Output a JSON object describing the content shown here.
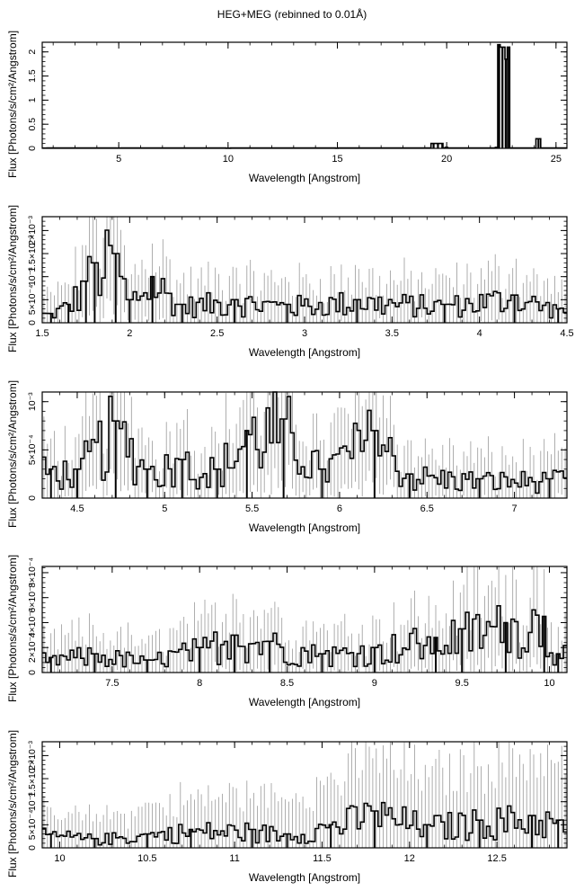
{
  "figure_title": "HEG+MEG (rebinned to 0.01Å)",
  "colors": {
    "data": "#000000",
    "error_bar": "#9a9a9a",
    "axes": "#000000",
    "background": "#ffffff"
  },
  "chart_data": [
    {
      "type": "line",
      "title": "HEG+MEG (rebinned to 0.01Å)",
      "xlabel": "Wavelength [Angstrom]",
      "ylabel": "Flux [Photons/s/cm²/Angstrom]",
      "xlim": [
        1.5,
        25.5
      ],
      "ylim": [
        0,
        2.2
      ],
      "xticks": [
        5,
        10,
        15,
        20,
        25
      ],
      "xtick_labels": [
        "5",
        "10",
        "15",
        "20",
        "25"
      ],
      "yticks": [
        0,
        0.5,
        1,
        1.5,
        2
      ],
      "ytick_labels": [
        "0",
        "0.5",
        "1",
        "1.5",
        "2"
      ],
      "y_exponent_label": "",
      "grid": false,
      "series": [
        {
          "x": [
            1.6,
            5,
            10,
            15,
            19.4,
            19.6,
            19.8,
            20.0,
            22.3,
            22.4,
            22.55,
            22.7,
            22.8,
            24.2,
            25.3
          ],
          "y": [
            0.005,
            0.005,
            0.004,
            0.003,
            0.1,
            0.1,
            0.1,
            0.02,
            0.02,
            2.15,
            2.1,
            1.85,
            2.1,
            0.2,
            0.01
          ]
        }
      ]
    },
    {
      "type": "line",
      "xlabel": "Wavelength [Angstrom]",
      "ylabel": "Flux [Photons/s/cm²/Angstrom]",
      "xlim": [
        1.5,
        4.5
      ],
      "ylim": [
        0,
        0.0023
      ],
      "xticks": [
        1.5,
        2,
        2.5,
        3,
        3.5,
        4,
        4.5
      ],
      "xtick_labels": [
        "1.5",
        "2",
        "2.5",
        "3",
        "3.5",
        "4",
        "4.5"
      ],
      "yticks": [
        0,
        0.0005,
        0.001,
        0.0015,
        0.002
      ],
      "ytick_labels": [
        "0",
        "5×10⁻⁴",
        "10⁻³",
        "1.5×10⁻³",
        "2×10⁻³"
      ],
      "y_exponent_label": "",
      "grid": false,
      "series": [
        {
          "x": [
            1.55,
            1.65,
            1.75,
            1.8,
            1.92,
            2.0,
            2.13,
            2.3,
            2.6,
            2.9,
            3.3,
            3.8,
            4.2,
            4.45
          ],
          "y": [
            0.0002,
            0.0004,
            0.0009,
            0.0013,
            0.0015,
            0.0005,
            0.001,
            0.0004,
            0.0005,
            0.0004,
            0.0005,
            0.0004,
            0.0006,
            0.0003
          ]
        }
      ]
    },
    {
      "type": "line",
      "xlabel": "Wavelength [Angstrom]",
      "ylabel": "Flux [Photons/s/cm²/Angstrom]",
      "xlim": [
        4.3,
        7.3
      ],
      "ylim": [
        0,
        0.0011
      ],
      "xticks": [
        4.5,
        5,
        5.5,
        6,
        6.5,
        7
      ],
      "xtick_labels": [
        "4.5",
        "5",
        "5.5",
        "6",
        "6.5",
        "7"
      ],
      "yticks": [
        0,
        0.0005,
        0.001
      ],
      "ytick_labels": [
        "0",
        "5×10⁻⁴",
        "10⁻³"
      ],
      "y_exponent_label": "",
      "grid": false,
      "series": [
        {
          "x": [
            4.35,
            4.5,
            4.72,
            4.9,
            5.1,
            5.3,
            5.47,
            5.68,
            5.9,
            6.2,
            6.4,
            6.8,
            7.2
          ],
          "y": [
            0.0003,
            0.0003,
            0.0008,
            0.0003,
            0.0004,
            0.0003,
            0.0007,
            0.00082,
            0.0003,
            0.0007,
            0.00025,
            0.0002,
            0.0002
          ]
        }
      ]
    },
    {
      "type": "line",
      "xlabel": "Wavelength [Angstrom]",
      "ylabel": "Flux [Photons/s/cm²/Angstrom]",
      "xlim": [
        7.1,
        10.1
      ],
      "ylim": [
        0,
        0.00085
      ],
      "xticks": [
        7.5,
        8,
        8.5,
        9,
        9.5,
        10
      ],
      "xtick_labels": [
        "7.5",
        "8",
        "8.5",
        "9",
        "9.5",
        "10"
      ],
      "yticks": [
        0,
        0.0002,
        0.0004,
        0.0006,
        0.0008
      ],
      "ytick_labels": [
        "0",
        "2×10⁻⁴",
        "4×10⁻⁴",
        "6×10⁻⁴",
        "8×10⁻⁴"
      ],
      "y_exponent_label": "",
      "grid": false,
      "series": [
        {
          "x": [
            7.15,
            7.4,
            7.7,
            8.0,
            8.2,
            8.4,
            8.7,
            9.0,
            9.35,
            9.5,
            9.75,
            9.97,
            10.05
          ],
          "y": [
            0.00012,
            0.00015,
            0.0001,
            0.0002,
            0.0003,
            0.00025,
            0.00015,
            0.0002,
            0.00028,
            0.00035,
            0.0004,
            0.00045,
            0.00015
          ]
        }
      ]
    },
    {
      "type": "line",
      "xlabel": "Wavelength [Angstrom]",
      "ylabel": "Flux [Photons/s/cm²/Angstrom]",
      "xlim": [
        9.9,
        12.9
      ],
      "ylim": [
        0,
        0.0023
      ],
      "xticks": [
        10,
        10.5,
        11,
        11.5,
        12,
        12.5
      ],
      "xtick_labels": [
        "10",
        "10.5",
        "11",
        "11.5",
        "12",
        "12.5"
      ],
      "yticks": [
        0,
        0.0005,
        0.001,
        0.0015,
        0.002
      ],
      "ytick_labels": [
        "0",
        "5×10⁻⁴",
        "10⁻³",
        "1.5×10⁻³",
        "2×10⁻³"
      ],
      "y_exponent_label": "",
      "grid": false,
      "series": [
        {
          "x": [
            9.95,
            10.2,
            10.5,
            10.75,
            11.1,
            11.3,
            11.55,
            11.8,
            12.1,
            12.4,
            12.7,
            12.85
          ],
          "y": [
            0.0003,
            0.0002,
            0.0003,
            0.0004,
            0.0004,
            0.0003,
            0.0005,
            0.0008,
            0.0005,
            0.0006,
            0.0007,
            0.0006
          ]
        }
      ]
    }
  ]
}
